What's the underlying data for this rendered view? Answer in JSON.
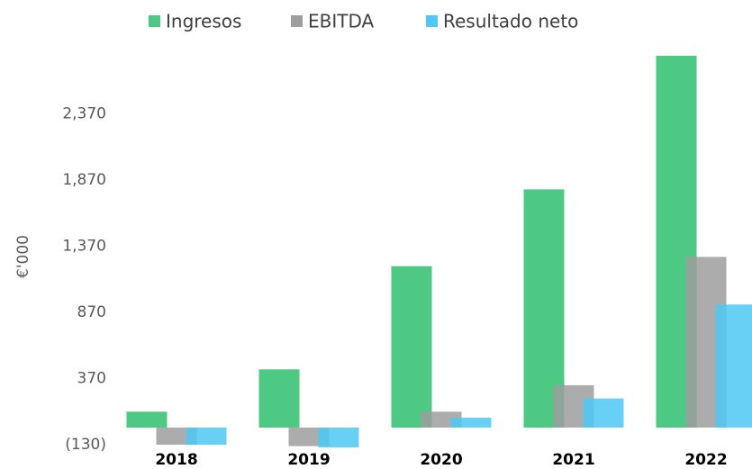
{
  "chart_data": {
    "type": "bar",
    "y_label": "€'000",
    "categories": [
      "2018",
      "2019",
      "2020",
      "2021",
      "2022"
    ],
    "series": [
      {
        "name": "Ingresos",
        "color": "#4dc983",
        "values": [
          120,
          440,
          1220,
          1800,
          2810
        ]
      },
      {
        "name": "EBITDA",
        "color": "#9e9e9e",
        "values": [
          -130,
          -140,
          120,
          320,
          1290
        ]
      },
      {
        "name": "Resultado neto",
        "color": "#4fc8f3",
        "values": [
          -130,
          -150,
          75,
          220,
          930
        ]
      }
    ],
    "ylim": [
      -160,
      2900
    ],
    "yticks": [
      {
        "value": -130,
        "label": "(130)"
      },
      370,
      870,
      {
        "value": 1370,
        "label": "1,370"
      },
      {
        "value": 1870,
        "label": "1,870"
      },
      {
        "value": 2370,
        "label": "2,370"
      }
    ],
    "grid": false
  }
}
